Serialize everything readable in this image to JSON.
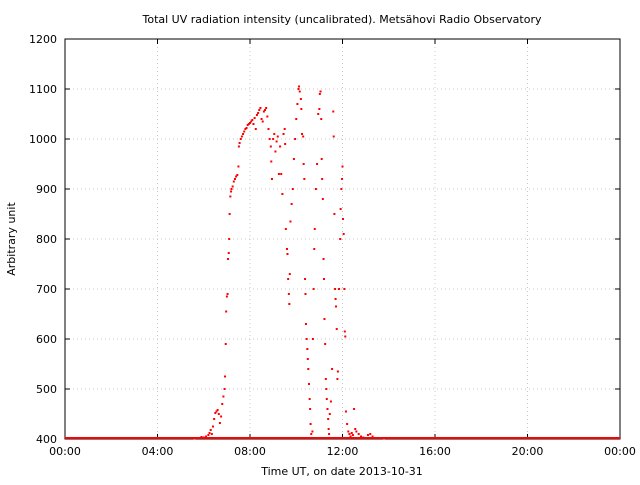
{
  "chart_data": {
    "type": "scatter",
    "title": "Total UV radiation intensity (uncalibrated). Metsähovi Radio Observatory",
    "xlabel": "Time UT, on date 2013-10-31",
    "ylabel": "Arbitrary unit",
    "xlim": [
      0,
      24
    ],
    "ylim": [
      400,
      1200
    ],
    "x_ticks": [
      {
        "value": 0,
        "label": "00:00"
      },
      {
        "value": 4,
        "label": "04:00"
      },
      {
        "value": 8,
        "label": "08:00"
      },
      {
        "value": 12,
        "label": "12:00"
      },
      {
        "value": 16,
        "label": "16:00"
      },
      {
        "value": 20,
        "label": "20:00"
      },
      {
        "value": 24,
        "label": "00:00"
      }
    ],
    "y_ticks": [
      {
        "value": 400,
        "label": "400"
      },
      {
        "value": 500,
        "label": "500"
      },
      {
        "value": 600,
        "label": "600"
      },
      {
        "value": 700,
        "label": "700"
      },
      {
        "value": 800,
        "label": "800"
      },
      {
        "value": 900,
        "label": "900"
      },
      {
        "value": 1000,
        "label": "1000"
      },
      {
        "value": 1100,
        "label": "1100"
      },
      {
        "value": 1200,
        "label": "1200"
      }
    ],
    "grid": true,
    "marker_color": "#ff0000",
    "baseline": {
      "value": 400,
      "from": 0,
      "to": 24
    },
    "series": [
      {
        "points": [
          [
            5.6,
            401
          ],
          [
            5.75,
            402
          ],
          [
            5.9,
            404
          ],
          [
            6.0,
            403
          ],
          [
            6.1,
            405
          ],
          [
            6.2,
            408
          ],
          [
            6.25,
            412
          ],
          [
            6.3,
            418
          ],
          [
            6.35,
            410
          ],
          [
            6.4,
            425
          ],
          [
            6.45,
            440
          ],
          [
            6.5,
            452
          ],
          [
            6.55,
            455
          ],
          [
            6.6,
            458
          ],
          [
            6.65,
            450
          ],
          [
            6.7,
            432
          ],
          [
            6.75,
            445
          ],
          [
            6.8,
            470
          ],
          [
            6.85,
            485
          ],
          [
            6.9,
            500
          ],
          [
            6.92,
            525
          ],
          [
            6.95,
            590
          ],
          [
            6.97,
            655
          ],
          [
            7.0,
            685
          ],
          [
            7.03,
            690
          ],
          [
            7.05,
            760
          ],
          [
            7.08,
            772
          ],
          [
            7.1,
            800
          ],
          [
            7.12,
            850
          ],
          [
            7.15,
            885
          ],
          [
            7.18,
            895
          ],
          [
            7.2,
            900
          ],
          [
            7.25,
            905
          ],
          [
            7.3,
            915
          ],
          [
            7.35,
            920
          ],
          [
            7.4,
            925
          ],
          [
            7.45,
            928
          ],
          [
            7.5,
            945
          ],
          [
            7.52,
            985
          ],
          [
            7.55,
            992
          ],
          [
            7.6,
            1000
          ],
          [
            7.65,
            1005
          ],
          [
            7.7,
            1010
          ],
          [
            7.75,
            1015
          ],
          [
            7.8,
            1020
          ],
          [
            7.85,
            1022
          ],
          [
            7.9,
            1028
          ],
          [
            7.95,
            1030
          ],
          [
            8.0,
            1032
          ],
          [
            8.05,
            1035
          ],
          [
            8.1,
            1038
          ],
          [
            8.15,
            1030
          ],
          [
            8.2,
            1042
          ],
          [
            8.25,
            1020
          ],
          [
            8.3,
            1048
          ],
          [
            8.35,
            1052
          ],
          [
            8.4,
            1058
          ],
          [
            8.45,
            1062
          ],
          [
            8.5,
            1040
          ],
          [
            8.55,
            1035
          ],
          [
            8.6,
            1055
          ],
          [
            8.65,
            1058
          ],
          [
            8.7,
            1062
          ],
          [
            8.75,
            1045
          ],
          [
            8.8,
            1020
          ],
          [
            8.85,
            1000
          ],
          [
            8.9,
            985
          ],
          [
            8.92,
            955
          ],
          [
            8.95,
            920
          ],
          [
            9.0,
            1000
          ],
          [
            9.05,
            1010
          ],
          [
            9.1,
            975
          ],
          [
            9.15,
            995
          ],
          [
            9.2,
            1005
          ],
          [
            9.25,
            930
          ],
          [
            9.3,
            985
          ],
          [
            9.35,
            930
          ],
          [
            9.4,
            890
          ],
          [
            9.45,
            1010
          ],
          [
            9.5,
            1020
          ],
          [
            9.52,
            990
          ],
          [
            9.55,
            820
          ],
          [
            9.6,
            780
          ],
          [
            9.62,
            770
          ],
          [
            9.65,
            720
          ],
          [
            9.68,
            690
          ],
          [
            9.7,
            670
          ],
          [
            9.72,
            730
          ],
          [
            9.75,
            835
          ],
          [
            9.8,
            870
          ],
          [
            9.85,
            900
          ],
          [
            9.9,
            960
          ],
          [
            9.95,
            1000
          ],
          [
            10.0,
            1040
          ],
          [
            10.05,
            1070
          ],
          [
            10.1,
            1100
          ],
          [
            10.12,
            1105
          ],
          [
            10.15,
            1095
          ],
          [
            10.2,
            1080
          ],
          [
            10.22,
            1060
          ],
          [
            10.25,
            1010
          ],
          [
            10.3,
            1005
          ],
          [
            10.32,
            950
          ],
          [
            10.35,
            920
          ],
          [
            10.38,
            720
          ],
          [
            10.4,
            690
          ],
          [
            10.42,
            630
          ],
          [
            10.45,
            600
          ],
          [
            10.48,
            580
          ],
          [
            10.5,
            560
          ],
          [
            10.52,
            540
          ],
          [
            10.55,
            510
          ],
          [
            10.58,
            480
          ],
          [
            10.6,
            460
          ],
          [
            10.62,
            430
          ],
          [
            10.65,
            410
          ],
          [
            10.7,
            415
          ],
          [
            10.72,
            600
          ],
          [
            10.75,
            700
          ],
          [
            10.78,
            780
          ],
          [
            10.8,
            820
          ],
          [
            10.85,
            900
          ],
          [
            10.9,
            950
          ],
          [
            10.95,
            1050
          ],
          [
            11.0,
            1060
          ],
          [
            11.02,
            1090
          ],
          [
            11.05,
            1095
          ],
          [
            11.08,
            1040
          ],
          [
            11.1,
            960
          ],
          [
            11.12,
            920
          ],
          [
            11.15,
            880
          ],
          [
            11.18,
            760
          ],
          [
            11.2,
            720
          ],
          [
            11.22,
            640
          ],
          [
            11.25,
            590
          ],
          [
            11.28,
            520
          ],
          [
            11.3,
            500
          ],
          [
            11.32,
            480
          ],
          [
            11.35,
            460
          ],
          [
            11.38,
            440
          ],
          [
            11.4,
            420
          ],
          [
            11.42,
            410
          ],
          [
            11.45,
            450
          ],
          [
            11.5,
            475
          ],
          [
            11.55,
            540
          ],
          [
            11.6,
            1055
          ],
          [
            11.62,
            1005
          ],
          [
            11.65,
            850
          ],
          [
            11.68,
            700
          ],
          [
            11.7,
            680
          ],
          [
            11.72,
            665
          ],
          [
            11.75,
            620
          ],
          [
            11.78,
            520
          ],
          [
            11.8,
            535
          ],
          [
            11.85,
            700
          ],
          [
            11.9,
            800
          ],
          [
            11.92,
            860
          ],
          [
            11.95,
            900
          ],
          [
            11.98,
            920
          ],
          [
            12.0,
            945
          ],
          [
            12.02,
            840
          ],
          [
            12.05,
            810
          ],
          [
            12.08,
            700
          ],
          [
            12.1,
            615
          ],
          [
            12.12,
            605
          ],
          [
            12.15,
            455
          ],
          [
            12.2,
            430
          ],
          [
            12.25,
            415
          ],
          [
            12.3,
            410
          ],
          [
            12.35,
            405
          ],
          [
            12.4,
            412
          ],
          [
            12.45,
            408
          ],
          [
            12.5,
            460
          ],
          [
            12.55,
            420
          ],
          [
            12.6,
            415
          ],
          [
            12.7,
            410
          ],
          [
            12.8,
            405
          ],
          [
            12.9,
            403
          ],
          [
            13.0,
            402
          ],
          [
            13.1,
            408
          ],
          [
            13.2,
            410
          ],
          [
            13.3,
            405
          ],
          [
            13.5,
            402
          ],
          [
            13.8,
            401
          ]
        ]
      }
    ]
  }
}
